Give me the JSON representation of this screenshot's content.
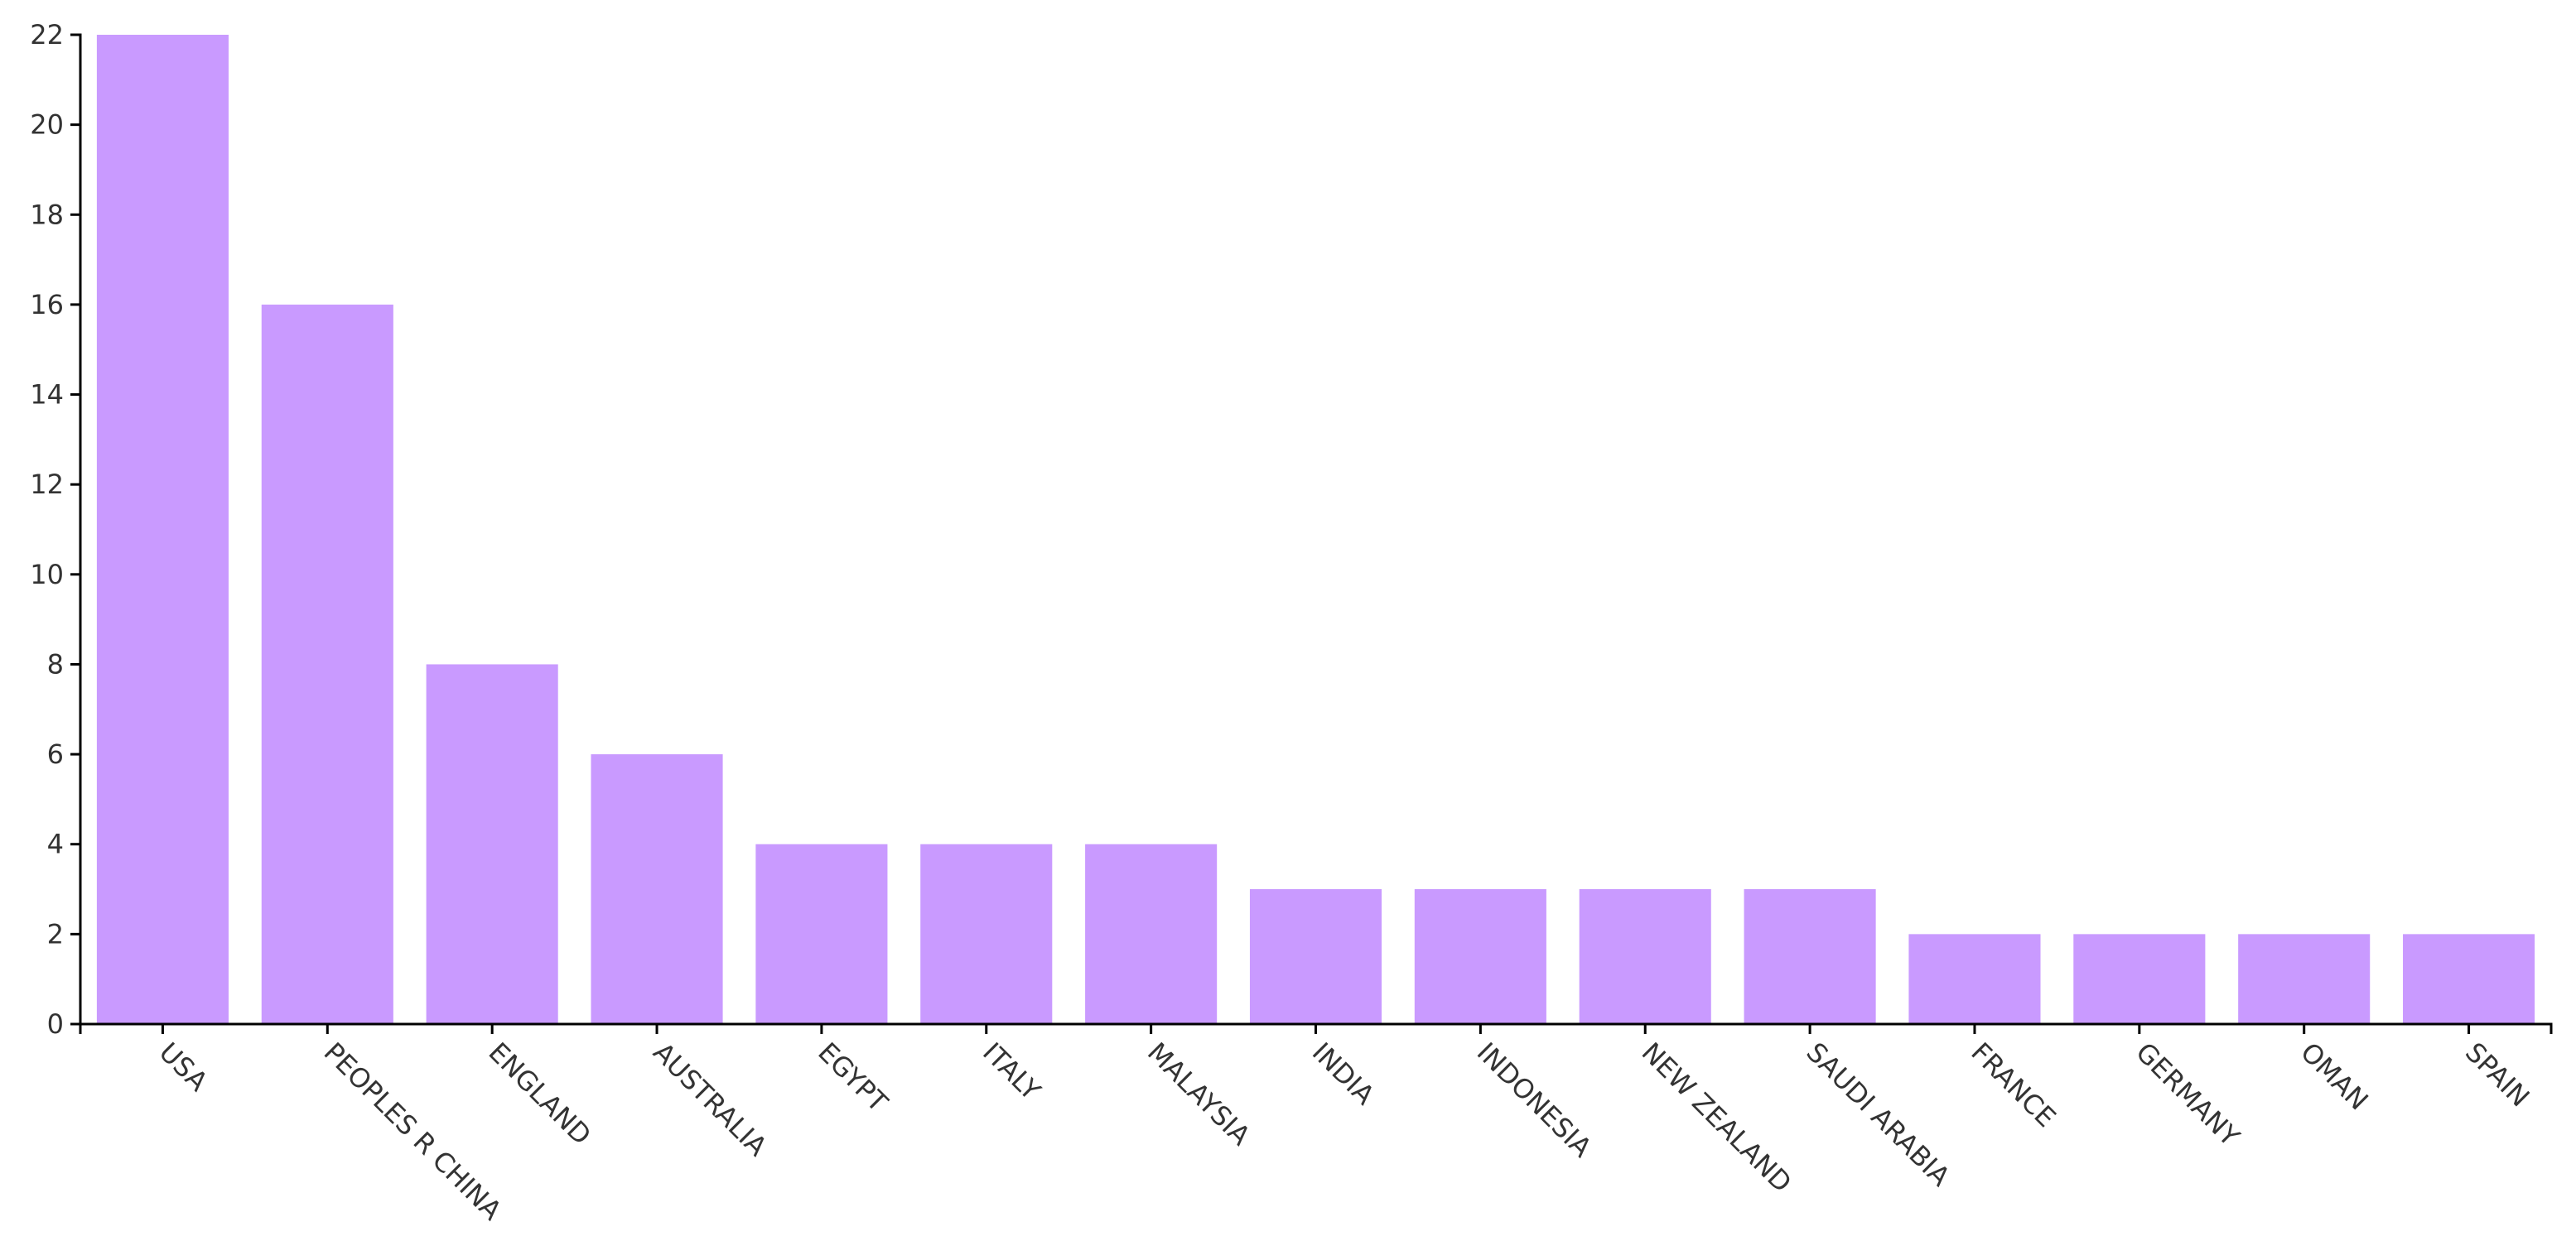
{
  "chart_data": {
    "type": "bar",
    "categories": [
      "USA",
      "PEOPLES R CHINA",
      "ENGLAND",
      "AUSTRALIA",
      "EGYPT",
      "ITALY",
      "MALAYSIA",
      "INDIA",
      "INDONESIA",
      "NEW ZEALAND",
      "SAUDI ARABIA",
      "FRANCE",
      "GERMANY",
      "OMAN",
      "SPAIN"
    ],
    "values": [
      22,
      16,
      8,
      6,
      4,
      4,
      4,
      3,
      3,
      3,
      3,
      2,
      2,
      2,
      2
    ],
    "color": "#c99aff",
    "ylim": [
      0,
      22
    ],
    "yticks": [
      0,
      2,
      4,
      6,
      8,
      10,
      12,
      14,
      16,
      18,
      20,
      22
    ],
    "grid": false
  }
}
